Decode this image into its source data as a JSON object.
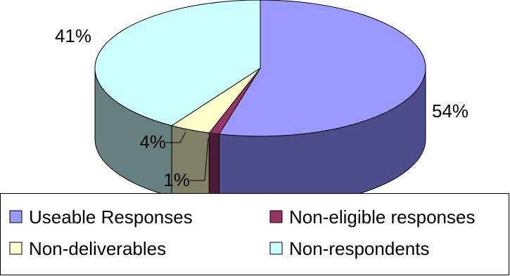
{
  "chart_data": {
    "type": "pie",
    "three_d": true,
    "title": "",
    "slices": [
      {
        "name": "Useable Responses",
        "value": 54,
        "label": "54%",
        "color": "#9999ff",
        "side_color": "#4d4d8c"
      },
      {
        "name": "Non-eligible responses",
        "value": 1,
        "label": "1%",
        "color": "#993366",
        "side_color": "#4d1a33"
      },
      {
        "name": "Non-deliverables",
        "value": 4,
        "label": "4%",
        "color": "#ffffcc",
        "side_color": "#808066"
      },
      {
        "name": "Non-respondents",
        "value": 41,
        "label": "41%",
        "color": "#ccffff",
        "side_color": "#668080"
      }
    ],
    "legend": {
      "placement": "bottom",
      "items": [
        {
          "name": "Useable Responses",
          "color": "#9999ff"
        },
        {
          "name": "Non-eligible responses",
          "color": "#993366"
        },
        {
          "name": "Non-deliverables",
          "color": "#ffffcc"
        },
        {
          "name": "Non-respondents",
          "color": "#ccffff"
        }
      ]
    }
  }
}
